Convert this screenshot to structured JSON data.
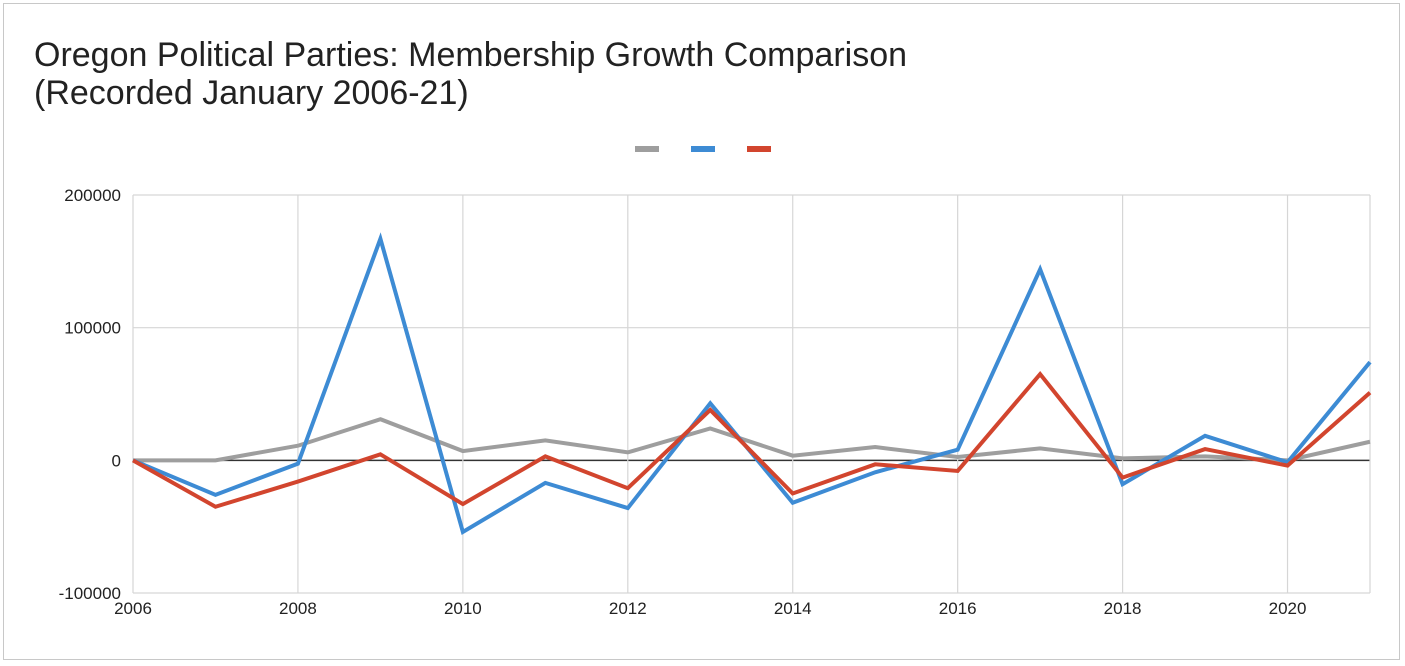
{
  "chart_data": {
    "type": "line",
    "title": "Oregon Political Parties: Membership Growth Comparison\n(Recorded January 2006-21)",
    "xlabel": "",
    "ylabel": "",
    "x": [
      2006,
      2007,
      2008,
      2009,
      2010,
      2011,
      2012,
      2013,
      2014,
      2015,
      2016,
      2017,
      2018,
      2019,
      2020,
      2021
    ],
    "xlim": [
      2006,
      2021
    ],
    "ylim": [
      -100000,
      200000
    ],
    "x_ticks": [
      "2006",
      "2008",
      "2010",
      "2012",
      "2014",
      "2016",
      "2018",
      "2020"
    ],
    "y_ticks": [
      "200000",
      "100000",
      "0",
      "-100000"
    ],
    "grid": true,
    "legend": "top-center",
    "series": [
      {
        "color": "#9e9e9e",
        "values": [
          0,
          0,
          11000,
          31000,
          7000,
          15000,
          6000,
          24000,
          3500,
          10000,
          2500,
          9000,
          1500,
          3000,
          0,
          14000
        ]
      },
      {
        "color": "#3d8bd4",
        "values": [
          0,
          -26000,
          -2500,
          167000,
          -54000,
          -17000,
          -36000,
          43000,
          -32000,
          -9000,
          8000,
          144000,
          -18000,
          18500,
          -1500,
          74000
        ]
      },
      {
        "color": "#d2452e",
        "values": [
          0,
          -35000,
          -16000,
          4500,
          -33000,
          3000,
          -21000,
          38000,
          -25000,
          -3000,
          -8000,
          65000,
          -13000,
          8500,
          -4000,
          51000
        ]
      }
    ]
  }
}
